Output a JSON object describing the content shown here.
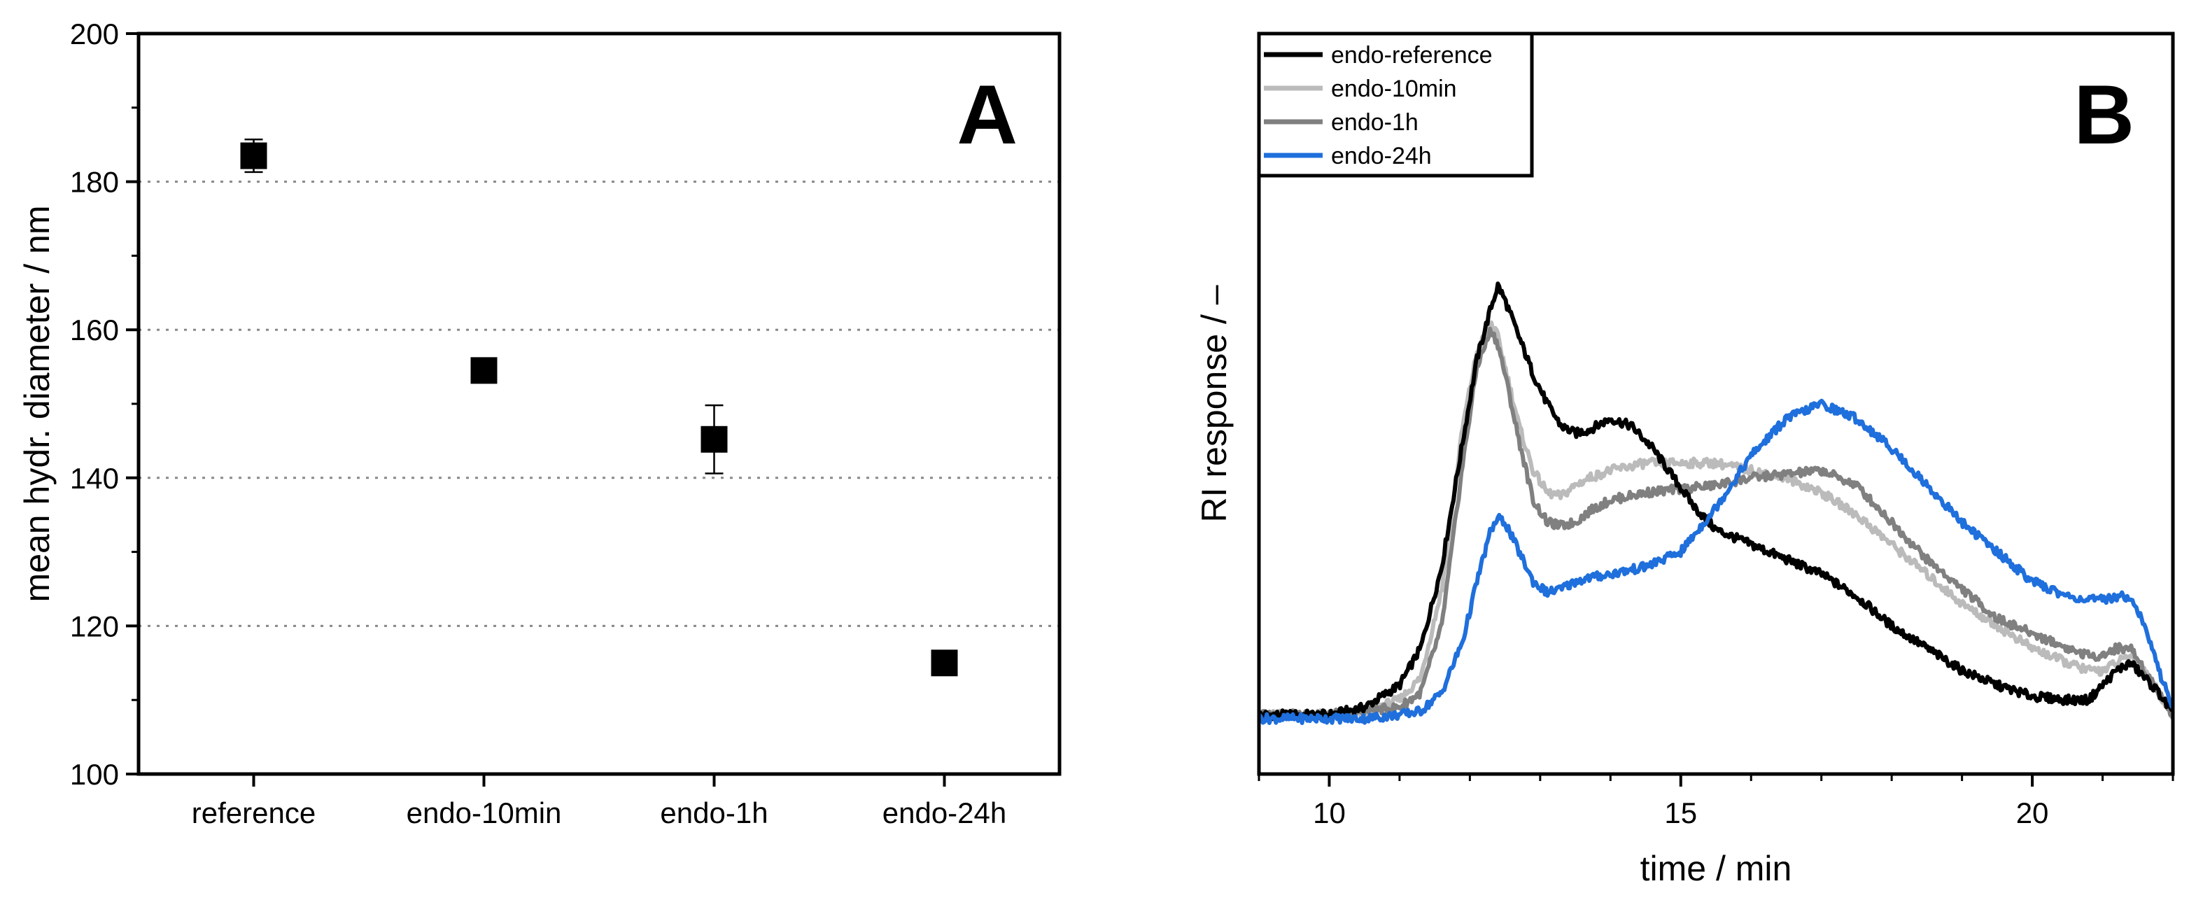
{
  "chart_data": [
    {
      "panel": "A",
      "type": "scatter",
      "ylabel": "mean hydr. diameter / nm",
      "xlabel": "",
      "categories": [
        "reference",
        "endo-10min",
        "endo-1h",
        "endo-24h"
      ],
      "values": [
        183.5,
        154.5,
        145.2,
        115.0
      ],
      "errors": [
        2.2,
        0.8,
        4.6,
        0.6
      ],
      "ylim": [
        100,
        200
      ],
      "yticks": [
        "100",
        "120",
        "140",
        "160",
        "180",
        "200"
      ],
      "gridlines": [
        120,
        140,
        160,
        180
      ],
      "marker": "square",
      "color": "#000000"
    },
    {
      "panel": "B",
      "type": "line",
      "xlabel": "time / min",
      "ylabel": "RI response / –",
      "xlim": [
        9,
        22
      ],
      "xticks": [
        "10",
        "15",
        "20"
      ],
      "ylim": [
        0,
        1
      ],
      "legend_position": "top-left",
      "series": [
        {
          "name": "endo-reference",
          "color": "#000000",
          "x": [
            9,
            10,
            10.5,
            11,
            11.3,
            11.6,
            11.9,
            12.1,
            12.3,
            12.4,
            12.5,
            12.7,
            12.9,
            13.1,
            13.3,
            13.5,
            13.7,
            14.0,
            14.3,
            14.6,
            14.9,
            15.2,
            15.5,
            16.0,
            16.5,
            17.0,
            17.5,
            18.0,
            18.5,
            19.0,
            19.5,
            20.0,
            20.5,
            20.8,
            21.0,
            21.2,
            21.4,
            21.6,
            21.8,
            22.0
          ],
          "y": [
            0.08,
            0.08,
            0.09,
            0.12,
            0.17,
            0.28,
            0.45,
            0.56,
            0.63,
            0.66,
            0.64,
            0.59,
            0.54,
            0.5,
            0.47,
            0.46,
            0.465,
            0.48,
            0.47,
            0.44,
            0.4,
            0.36,
            0.33,
            0.31,
            0.29,
            0.27,
            0.24,
            0.2,
            0.17,
            0.14,
            0.12,
            0.105,
            0.1,
            0.1,
            0.12,
            0.14,
            0.15,
            0.13,
            0.11,
            0.08
          ]
        },
        {
          "name": "endo-10min",
          "color": "#bbbbbb",
          "x": [
            9,
            10,
            10.5,
            11,
            11.3,
            11.6,
            11.9,
            12.1,
            12.3,
            12.4,
            12.5,
            12.7,
            12.9,
            13.1,
            13.3,
            13.5,
            13.7,
            14.0,
            14.5,
            15.0,
            15.5,
            16.0,
            16.5,
            17.0,
            17.5,
            18.0,
            18.5,
            19.0,
            19.5,
            20.0,
            20.5,
            20.8,
            21.0,
            21.2,
            21.4,
            21.6,
            21.8,
            22.0
          ],
          "y": [
            0.08,
            0.08,
            0.085,
            0.1,
            0.13,
            0.25,
            0.47,
            0.57,
            0.61,
            0.59,
            0.55,
            0.47,
            0.41,
            0.38,
            0.375,
            0.39,
            0.4,
            0.41,
            0.42,
            0.42,
            0.42,
            0.41,
            0.4,
            0.38,
            0.35,
            0.31,
            0.27,
            0.23,
            0.2,
            0.17,
            0.15,
            0.14,
            0.14,
            0.15,
            0.16,
            0.14,
            0.11,
            0.08
          ]
        },
        {
          "name": "endo-1h",
          "color": "#808080",
          "x": [
            9,
            10,
            10.5,
            11,
            11.3,
            11.6,
            11.9,
            12.1,
            12.3,
            12.4,
            12.5,
            12.7,
            12.9,
            13.1,
            13.3,
            13.5,
            13.7,
            14.0,
            14.5,
            15.0,
            15.5,
            16.0,
            16.5,
            17.0,
            17.5,
            18.0,
            18.5,
            19.0,
            19.5,
            20.0,
            20.5,
            20.8,
            21.0,
            21.2,
            21.4,
            21.6,
            21.8,
            22.0
          ],
          "y": [
            0.08,
            0.08,
            0.085,
            0.09,
            0.11,
            0.2,
            0.42,
            0.55,
            0.6,
            0.58,
            0.54,
            0.45,
            0.37,
            0.34,
            0.335,
            0.34,
            0.355,
            0.37,
            0.38,
            0.385,
            0.39,
            0.4,
            0.405,
            0.41,
            0.39,
            0.34,
            0.29,
            0.25,
            0.21,
            0.19,
            0.17,
            0.16,
            0.16,
            0.17,
            0.17,
            0.14,
            0.11,
            0.08
          ]
        },
        {
          "name": "endo-24h",
          "color": "#1f6fdc",
          "x": [
            9,
            10,
            10.5,
            11,
            11.3,
            11.6,
            11.9,
            12.1,
            12.3,
            12.4,
            12.5,
            12.7,
            12.9,
            13.1,
            13.3,
            13.5,
            13.7,
            14.0,
            14.5,
            15.0,
            15.5,
            16.0,
            16.5,
            17.0,
            17.5,
            18.0,
            18.5,
            19.0,
            19.5,
            20.0,
            20.5,
            20.8,
            21.0,
            21.2,
            21.4,
            21.6,
            21.8,
            22.0
          ],
          "y": [
            0.075,
            0.075,
            0.075,
            0.08,
            0.085,
            0.11,
            0.18,
            0.26,
            0.33,
            0.345,
            0.34,
            0.3,
            0.26,
            0.245,
            0.25,
            0.26,
            0.265,
            0.27,
            0.28,
            0.3,
            0.36,
            0.43,
            0.48,
            0.5,
            0.48,
            0.44,
            0.39,
            0.34,
            0.3,
            0.26,
            0.24,
            0.235,
            0.235,
            0.24,
            0.24,
            0.2,
            0.14,
            0.09
          ]
        }
      ]
    }
  ]
}
